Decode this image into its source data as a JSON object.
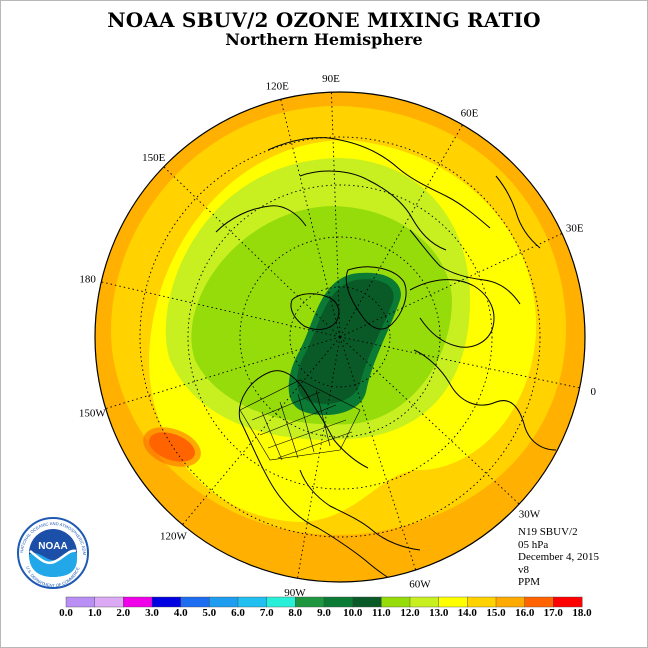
{
  "title": "NOAA SBUV/2 OZONE MIXING RATIO",
  "subtitle": "Northern Hemisphere",
  "longitude_labels": [
    "90E",
    "60E",
    "30E",
    "0",
    "30W",
    "60W",
    "90W",
    "120W",
    "150W",
    "180",
    "150E",
    "120E"
  ],
  "info": {
    "satellite": "N19 SBUV/2",
    "level": "05 hPa",
    "date": "December 4, 2015",
    "version": "v8",
    "units": "PPM"
  },
  "logo": {
    "text": "NOAA",
    "ring_text": "NATIONAL OCEANIC AND ATMOSPHERIC ADMINISTRATION · U.S. DEPARTMENT OF COMMERCE"
  },
  "colorbar": {
    "ticks": [
      "0.0",
      "1.0",
      "2.0",
      "3.0",
      "4.0",
      "5.0",
      "6.0",
      "7.0",
      "8.0",
      "9.0",
      "10.0",
      "11.0",
      "12.0",
      "13.0",
      "14.0",
      "15.0",
      "16.0",
      "17.0",
      "18.0"
    ],
    "colors": [
      "#b98ef5",
      "#dcaaf5",
      "#f000e8",
      "#0000e0",
      "#1e6cf0",
      "#1e9cf0",
      "#22c0f0",
      "#28f0d8",
      "#1e9640",
      "#0a7a34",
      "#0a5a28",
      "#96dc0a",
      "#c8f020",
      "#ffff00",
      "#ffd200",
      "#ffaa00",
      "#ff6400",
      "#ff0000",
      "#8c4a2a"
    ]
  },
  "field_colors": {
    "outer": "#ffb000",
    "ring": "#ffd200",
    "mid": "#ffff00",
    "inner_light": "#c8f020",
    "inner": "#96dc0a",
    "core": "#0a7a34",
    "core_dark": "#0a5a28",
    "hot": "#ff6400"
  }
}
